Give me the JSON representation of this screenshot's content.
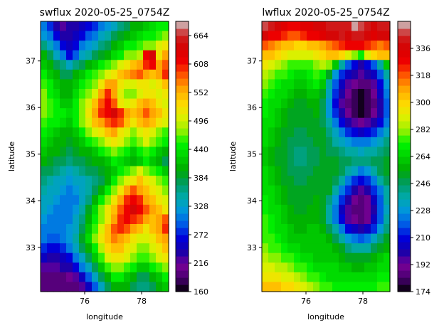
{
  "chart_data": [
    {
      "type": "heatmap",
      "title": "swflux 2020-05-25_0754Z",
      "xlabel": "longitude",
      "ylabel": "latitude",
      "xlim": [
        74.45,
        78.95
      ],
      "ylim": [
        32.05,
        37.85
      ],
      "xticks": [
        76,
        78
      ],
      "yticks": [
        33,
        34,
        35,
        36,
        37
      ],
      "colorbar": {
        "min": 160,
        "max": 692,
        "ticks": [
          160,
          216,
          272,
          328,
          384,
          440,
          496,
          552,
          608,
          664
        ]
      },
      "grid_rows": 28,
      "grid_cols": 20,
      "values": [
        [
          300,
          280,
          240,
          220,
          230,
          240,
          250,
          260,
          280,
          300,
          320,
          340,
          360,
          380,
          400,
          410,
          420,
          430,
          440,
          450
        ],
        [
          320,
          300,
          260,
          230,
          235,
          250,
          270,
          290,
          310,
          330,
          350,
          370,
          390,
          410,
          420,
          430,
          440,
          450,
          460,
          470
        ],
        [
          360,
          340,
          300,
          260,
          250,
          260,
          300,
          320,
          340,
          360,
          380,
          400,
          420,
          440,
          450,
          460,
          470,
          480,
          500,
          520
        ],
        [
          400,
          380,
          340,
          300,
          270,
          290,
          330,
          350,
          370,
          390,
          410,
          430,
          450,
          470,
          480,
          490,
          620,
          640,
          520,
          560
        ],
        [
          420,
          400,
          380,
          360,
          340,
          360,
          380,
          400,
          420,
          440,
          460,
          480,
          500,
          520,
          540,
          560,
          600,
          620,
          560,
          580
        ],
        [
          440,
          420,
          400,
          380,
          380,
          400,
          420,
          440,
          460,
          480,
          500,
          520,
          540,
          560,
          570,
          580,
          560,
          540,
          560,
          600
        ],
        [
          460,
          440,
          420,
          400,
          400,
          420,
          440,
          460,
          480,
          520,
          560,
          560,
          520,
          500,
          500,
          520,
          520,
          500,
          520,
          540
        ],
        [
          470,
          450,
          430,
          410,
          410,
          430,
          460,
          480,
          500,
          560,
          600,
          560,
          500,
          480,
          480,
          500,
          520,
          520,
          500,
          520
        ],
        [
          480,
          460,
          440,
          420,
          420,
          440,
          470,
          500,
          540,
          580,
          620,
          580,
          520,
          500,
          520,
          540,
          560,
          540,
          520,
          500
        ],
        [
          470,
          460,
          450,
          440,
          430,
          450,
          480,
          520,
          560,
          600,
          620,
          640,
          600,
          560,
          540,
          560,
          580,
          560,
          540,
          520
        ],
        [
          460,
          450,
          440,
          430,
          420,
          440,
          470,
          500,
          540,
          560,
          580,
          600,
          580,
          540,
          520,
          540,
          560,
          540,
          520,
          500
        ],
        [
          440,
          430,
          420,
          410,
          400,
          420,
          450,
          480,
          500,
          520,
          540,
          560,
          520,
          500,
          480,
          500,
          520,
          500,
          480,
          460
        ],
        [
          430,
          420,
          410,
          400,
          390,
          400,
          420,
          440,
          460,
          480,
          500,
          520,
          500,
          480,
          460,
          480,
          500,
          480,
          460,
          440
        ],
        [
          420,
          410,
          400,
          390,
          380,
          390,
          400,
          410,
          420,
          440,
          460,
          480,
          460,
          440,
          420,
          440,
          460,
          440,
          420,
          400
        ],
        [
          400,
          390,
          380,
          370,
          360,
          370,
          380,
          390,
          400,
          410,
          420,
          440,
          430,
          420,
          410,
          420,
          440,
          420,
          400,
          380
        ],
        [
          380,
          370,
          360,
          350,
          340,
          350,
          360,
          370,
          380,
          390,
          400,
          420,
          440,
          460,
          480,
          500,
          480,
          460,
          440,
          420
        ],
        [
          360,
          350,
          340,
          330,
          320,
          330,
          340,
          350,
          360,
          380,
          400,
          440,
          480,
          500,
          520,
          540,
          520,
          500,
          480,
          460
        ],
        [
          350,
          340,
          330,
          320,
          310,
          320,
          330,
          350,
          370,
          400,
          440,
          480,
          520,
          560,
          580,
          560,
          540,
          520,
          500,
          480
        ],
        [
          340,
          330,
          320,
          310,
          300,
          310,
          330,
          360,
          400,
          440,
          480,
          520,
          560,
          600,
          620,
          600,
          560,
          540,
          520,
          500
        ],
        [
          330,
          320,
          310,
          300,
          300,
          320,
          350,
          390,
          430,
          470,
          510,
          540,
          580,
          620,
          640,
          620,
          580,
          560,
          540,
          520
        ],
        [
          320,
          310,
          300,
          300,
          310,
          330,
          360,
          400,
          440,
          480,
          520,
          560,
          600,
          620,
          600,
          580,
          560,
          540,
          560,
          580
        ],
        [
          310,
          300,
          300,
          300,
          320,
          340,
          380,
          420,
          460,
          500,
          540,
          580,
          600,
          580,
          560,
          540,
          520,
          540,
          560,
          600
        ],
        [
          300,
          290,
          290,
          300,
          320,
          350,
          390,
          430,
          470,
          510,
          550,
          570,
          560,
          540,
          520,
          500,
          500,
          520,
          540,
          560
        ],
        [
          280,
          270,
          270,
          280,
          300,
          330,
          370,
          410,
          450,
          490,
          530,
          550,
          540,
          520,
          500,
          480,
          480,
          500,
          520,
          540
        ],
        [
          250,
          240,
          240,
          250,
          270,
          300,
          340,
          380,
          420,
          460,
          500,
          520,
          520,
          500,
          480,
          460,
          460,
          480,
          500,
          520
        ],
        [
          220,
          220,
          220,
          230,
          240,
          260,
          300,
          340,
          380,
          420,
          460,
          480,
          480,
          460,
          440,
          420,
          420,
          440,
          460,
          480
        ],
        [
          200,
          200,
          200,
          200,
          210,
          220,
          250,
          290,
          330,
          370,
          410,
          440,
          440,
          420,
          400,
          380,
          380,
          400,
          420,
          440
        ],
        [
          190,
          190,
          190,
          190,
          195,
          200,
          220,
          250,
          290,
          330,
          370,
          400,
          410,
          400,
          380,
          360,
          360,
          380,
          400,
          420
        ]
      ]
    },
    {
      "type": "heatmap",
      "title": "lwflux 2020-05-25_0754Z",
      "xlabel": "longitude",
      "ylabel": "latitude",
      "xlim": [
        74.45,
        78.95
      ],
      "ylim": [
        32.05,
        37.85
      ],
      "xticks": [
        76,
        78
      ],
      "yticks": [
        33,
        34,
        35,
        36,
        37
      ],
      "colorbar": {
        "min": 174,
        "max": 354,
        "ticks": [
          174,
          192,
          210,
          228,
          246,
          264,
          282,
          300,
          318,
          336
        ]
      },
      "grid_rows": 28,
      "grid_cols": 20,
      "values": [
        [
          348,
          340,
          336,
          332,
          330,
          330,
          332,
          334,
          336,
          338,
          340,
          342,
          344,
          340,
          350,
          345,
          340,
          338,
          340,
          342
        ],
        [
          336,
          330,
          326,
          322,
          320,
          320,
          322,
          326,
          330,
          334,
          336,
          338,
          340,
          338,
          342,
          340,
          336,
          334,
          336,
          338
        ],
        [
          318,
          314,
          310,
          306,
          302,
          300,
          300,
          302,
          306,
          310,
          316,
          320,
          324,
          326,
          328,
          326,
          322,
          318,
          316,
          318
        ],
        [
          306,
          302,
          298,
          294,
          290,
          288,
          288,
          290,
          294,
          298,
          302,
          304,
          300,
          290,
          280,
          270,
          290,
          300,
          302,
          304
        ],
        [
          294,
          290,
          286,
          282,
          278,
          276,
          276,
          278,
          282,
          286,
          280,
          260,
          240,
          220,
          210,
          200,
          210,
          220,
          240,
          260
        ],
        [
          286,
          282,
          278,
          274,
          270,
          268,
          268,
          272,
          276,
          270,
          250,
          230,
          215,
          205,
          200,
          195,
          198,
          205,
          220,
          240
        ],
        [
          280,
          276,
          272,
          268,
          264,
          262,
          262,
          266,
          270,
          260,
          240,
          220,
          205,
          196,
          190,
          185,
          188,
          195,
          210,
          230
        ],
        [
          276,
          272,
          268,
          264,
          260,
          258,
          258,
          260,
          262,
          252,
          232,
          212,
          200,
          190,
          182,
          178,
          182,
          190,
          205,
          225
        ],
        [
          272,
          268,
          264,
          260,
          256,
          254,
          254,
          256,
          258,
          248,
          228,
          208,
          196,
          188,
          180,
          176,
          180,
          188,
          200,
          220
        ],
        [
          270,
          266,
          262,
          258,
          254,
          252,
          252,
          254,
          256,
          246,
          230,
          214,
          200,
          190,
          182,
          178,
          182,
          190,
          202,
          220
        ],
        [
          268,
          264,
          260,
          256,
          252,
          250,
          250,
          252,
          254,
          248,
          236,
          222,
          210,
          200,
          194,
          190,
          194,
          200,
          210,
          226
        ],
        [
          266,
          262,
          258,
          254,
          250,
          248,
          248,
          250,
          252,
          250,
          242,
          232,
          222,
          214,
          208,
          206,
          208,
          214,
          222,
          234
        ],
        [
          264,
          260,
          256,
          252,
          248,
          246,
          246,
          248,
          250,
          250,
          246,
          240,
          234,
          228,
          224,
          222,
          224,
          228,
          234,
          242
        ],
        [
          262,
          258,
          254,
          250,
          246,
          244,
          244,
          246,
          248,
          250,
          248,
          246,
          242,
          238,
          236,
          234,
          236,
          238,
          242,
          248
        ],
        [
          262,
          258,
          254,
          250,
          246,
          244,
          244,
          246,
          248,
          250,
          252,
          250,
          248,
          246,
          244,
          242,
          244,
          246,
          248,
          252
        ],
        [
          264,
          260,
          256,
          252,
          248,
          246,
          246,
          248,
          250,
          252,
          254,
          252,
          248,
          240,
          232,
          226,
          230,
          238,
          246,
          252
        ],
        [
          266,
          262,
          258,
          254,
          250,
          248,
          248,
          250,
          252,
          254,
          254,
          248,
          238,
          226,
          216,
          210,
          214,
          224,
          236,
          246
        ],
        [
          268,
          264,
          260,
          256,
          252,
          250,
          250,
          252,
          254,
          254,
          250,
          240,
          226,
          212,
          202,
          196,
          200,
          212,
          226,
          240
        ],
        [
          270,
          266,
          262,
          258,
          254,
          252,
          252,
          254,
          256,
          252,
          244,
          230,
          214,
          200,
          192,
          188,
          192,
          204,
          220,
          236
        ],
        [
          272,
          268,
          264,
          260,
          256,
          254,
          254,
          256,
          256,
          250,
          238,
          222,
          206,
          194,
          188,
          186,
          190,
          202,
          218,
          234
        ],
        [
          274,
          270,
          266,
          262,
          258,
          256,
          256,
          258,
          258,
          252,
          240,
          224,
          208,
          196,
          190,
          188,
          192,
          204,
          220,
          236
        ],
        [
          276,
          272,
          268,
          264,
          260,
          258,
          258,
          260,
          260,
          256,
          248,
          236,
          222,
          210,
          204,
          202,
          206,
          216,
          230,
          244
        ],
        [
          278,
          274,
          270,
          266,
          262,
          260,
          260,
          262,
          262,
          260,
          256,
          248,
          238,
          228,
          222,
          220,
          224,
          232,
          242,
          252
        ],
        [
          280,
          278,
          276,
          272,
          268,
          264,
          262,
          262,
          262,
          262,
          260,
          256,
          250,
          244,
          240,
          238,
          240,
          246,
          252,
          258
        ],
        [
          284,
          282,
          280,
          278,
          274,
          270,
          266,
          264,
          262,
          262,
          262,
          260,
          258,
          254,
          252,
          250,
          252,
          256,
          260,
          264
        ],
        [
          290,
          288,
          286,
          284,
          282,
          278,
          274,
          270,
          266,
          264,
          264,
          264,
          262,
          260,
          258,
          258,
          260,
          262,
          264,
          268
        ],
        [
          296,
          296,
          294,
          292,
          290,
          286,
          282,
          278,
          274,
          270,
          268,
          268,
          268,
          266,
          264,
          264,
          266,
          268,
          270,
          272
        ],
        [
          302,
          302,
          302,
          300,
          298,
          294,
          290,
          286,
          282,
          278,
          274,
          272,
          272,
          270,
          270,
          270,
          270,
          272,
          274,
          276
        ]
      ]
    }
  ]
}
